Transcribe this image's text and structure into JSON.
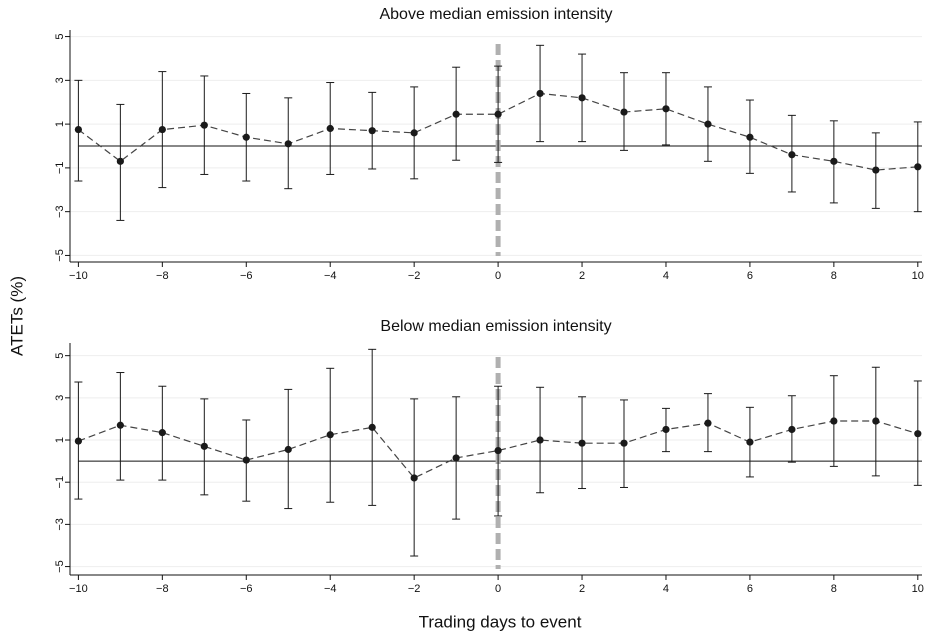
{
  "xlabel": "Trading days to event",
  "ylabel": "ATETs (%)",
  "chart_data": [
    {
      "type": "line",
      "title": "Above median emission intensity",
      "x": [
        -10,
        -9,
        -8,
        -7,
        -6,
        -5,
        -4,
        -3,
        -2,
        -1,
        0,
        1,
        2,
        3,
        4,
        5,
        6,
        7,
        8,
        9,
        10
      ],
      "series": [
        {
          "color": "#1a1a1a",
          "values": [
            0.75,
            -0.7,
            0.75,
            0.95,
            0.4,
            0.1,
            0.8,
            0.7,
            0.6,
            1.45,
            1.45,
            2.4,
            2.2,
            1.55,
            1.7,
            1.0,
            0.4,
            -0.4,
            -0.7,
            -1.1,
            -0.95
          ],
          "ci_lower": [
            -1.6,
            -3.4,
            -1.9,
            -1.3,
            -1.6,
            -1.95,
            -1.3,
            -1.05,
            -1.5,
            -0.65,
            -0.75,
            0.2,
            0.2,
            -0.2,
            0.05,
            -0.7,
            -1.25,
            -2.1,
            -2.6,
            -2.85,
            -3.0
          ],
          "ci_upper": [
            3.0,
            1.9,
            3.4,
            3.2,
            2.4,
            2.2,
            2.9,
            2.45,
            2.7,
            3.6,
            3.65,
            4.6,
            4.2,
            3.35,
            3.35,
            2.7,
            2.1,
            1.4,
            1.15,
            0.6,
            1.1
          ]
        }
      ],
      "xlim": [
        -10.2,
        10.1
      ],
      "ylim": [
        -5.3,
        5.3
      ],
      "xticks": [
        {
          "value": -10,
          "label": "−10"
        },
        {
          "value": -8,
          "label": "−8"
        },
        {
          "value": -6,
          "label": "−6"
        },
        {
          "value": -4,
          "label": "−4"
        },
        {
          "value": -2,
          "label": "−2"
        },
        0,
        2,
        4,
        6,
        8,
        10
      ],
      "yticks": [
        5,
        3,
        1,
        {
          "value": -1,
          "label": "−1"
        },
        {
          "value": -3,
          "label": "−3"
        },
        {
          "value": -5,
          "label": "−5"
        }
      ],
      "grid": true,
      "hline": 0,
      "vline": 0
    },
    {
      "type": "line",
      "title": "Below median emission intensity",
      "x": [
        -10,
        -9,
        -8,
        -7,
        -6,
        -5,
        -4,
        -3,
        -2,
        -1,
        0,
        1,
        2,
        3,
        4,
        5,
        6,
        7,
        8,
        9,
        10
      ],
      "series": [
        {
          "color": "#1a1a1a",
          "values": [
            0.95,
            1.7,
            1.35,
            0.7,
            0.05,
            0.55,
            1.25,
            1.6,
            -0.8,
            0.15,
            0.5,
            1.0,
            0.85,
            0.85,
            1.5,
            1.8,
            0.9,
            1.5,
            1.9,
            1.9,
            1.3
          ],
          "ci_lower": [
            -1.8,
            -0.9,
            -0.9,
            -1.6,
            -1.9,
            -2.25,
            -1.95,
            -2.1,
            -4.5,
            -2.75,
            -2.6,
            -1.5,
            -1.3,
            -1.25,
            0.45,
            0.45,
            -0.75,
            -0.05,
            -0.25,
            -0.7,
            -1.15
          ],
          "ci_upper": [
            3.75,
            4.2,
            3.55,
            2.95,
            1.95,
            3.4,
            4.4,
            5.3,
            2.95,
            3.05,
            3.55,
            3.5,
            3.05,
            2.9,
            2.5,
            3.2,
            2.55,
            3.1,
            4.05,
            4.45,
            3.8
          ]
        }
      ],
      "xlim": [
        -10.2,
        10.1
      ],
      "ylim": [
        -5.4,
        5.6
      ],
      "xticks": [
        {
          "value": -10,
          "label": "−10"
        },
        {
          "value": -8,
          "label": "−8"
        },
        {
          "value": -6,
          "label": "−6"
        },
        {
          "value": -4,
          "label": "−4"
        },
        {
          "value": -2,
          "label": "−2"
        },
        0,
        2,
        4,
        6,
        8,
        10
      ],
      "yticks": [
        5,
        3,
        1,
        {
          "value": -1,
          "label": "−1"
        },
        {
          "value": -3,
          "label": "−3"
        },
        {
          "value": -5,
          "label": "−5"
        }
      ],
      "grid": true,
      "hline": 0,
      "vline": 0
    }
  ]
}
